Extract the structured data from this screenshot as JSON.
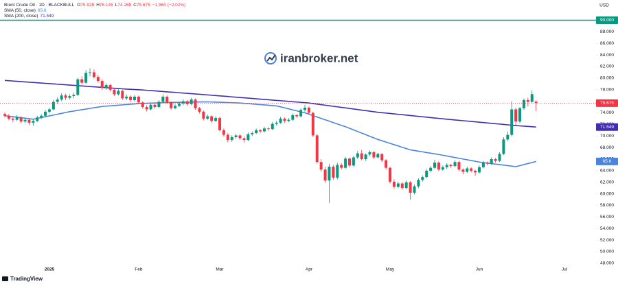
{
  "chart_data": {
    "type": "candlestick",
    "title": "Brent Crude Oil · 1D · BLACKBULL",
    "ohlc_labels": [
      "O",
      "H",
      "L",
      "C"
    ],
    "change": "−1.560 (−2.02%)",
    "currency": "USD",
    "watermark": "iranbroker.net",
    "brand": "TradingView",
    "up_color": "#089981",
    "down_color": "#f23645",
    "categories": [
      null,
      null,
      null,
      null,
      null,
      null,
      null,
      null,
      null,
      null,
      null,
      "2025",
      null,
      null,
      null,
      null,
      null,
      null,
      null,
      null,
      null,
      null,
      null,
      null,
      null,
      null,
      null,
      null,
      null,
      null,
      null,
      null,
      null,
      "Feb",
      null,
      null,
      null,
      null,
      null,
      null,
      null,
      null,
      null,
      null,
      null,
      null,
      null,
      null,
      null,
      null,
      null,
      null,
      null,
      "Mar",
      null,
      null,
      null,
      null,
      null,
      null,
      null,
      null,
      null,
      null,
      null,
      null,
      null,
      null,
      null,
      null,
      null,
      null,
      null,
      null,
      null,
      "Apr",
      null,
      null,
      null,
      null,
      null,
      null,
      null,
      null,
      null,
      null,
      null,
      null,
      null,
      null,
      null,
      null,
      null,
      null,
      null,
      "May",
      null,
      null,
      null,
      null,
      null,
      null,
      null,
      null,
      null,
      null,
      null,
      null,
      null,
      null,
      null,
      null,
      null,
      null,
      null,
      null,
      null,
      "Jun",
      null,
      null,
      null,
      null,
      null,
      null,
      null,
      null,
      null,
      null,
      null,
      null,
      null,
      null,
      null,
      null,
      null,
      null,
      null,
      null,
      "Jul"
    ],
    "open": [
      73.8,
      73.5,
      73.0,
      72.8,
      73.2,
      72.5,
      72.8,
      72.3,
      72.6,
      73.2,
      73.5,
      74.2,
      74.6,
      75.9,
      76.3,
      77.0,
      76.6,
      76.9,
      77.1,
      79.8,
      79.2,
      80.9,
      81.0,
      80.2,
      79.5,
      78.3,
      78.8,
      78.0,
      77.2,
      77.8,
      76.5,
      76.8,
      76.2,
      76.8,
      75.8,
      75.0,
      74.6,
      75.4,
      75.0,
      75.9,
      76.8,
      75.8,
      74.8,
      75.2,
      75.6,
      76.0,
      75.5,
      76.3,
      74.8,
      74.2,
      73.0,
      73.4,
      72.6,
      73.1,
      71.0,
      70.2,
      69.3,
      69.8,
      70.1,
      69.6,
      69.3,
      70.3,
      70.5,
      71.0,
      70.8,
      71.3,
      71.2,
      72.1,
      72.3,
      73.0,
      72.6,
      72.8,
      73.6,
      73.4,
      74.5,
      74.9,
      74.0,
      70.1,
      65.5,
      64.2,
      62.3,
      64.7,
      62.8,
      65.0,
      64.5,
      66.1,
      64.9,
      66.3,
      67.0,
      66.0,
      66.8,
      67.2,
      66.3,
      66.9,
      65.8,
      64.5,
      62.1,
      61.2,
      61.8,
      61.0,
      62.0,
      60.2,
      61.3,
      62.4,
      62.9,
      64.0,
      64.5,
      65.4,
      64.2,
      64.6,
      65.0,
      64.8,
      65.5,
      64.2,
      63.8,
      64.4,
      64.0,
      63.7,
      64.6,
      65.4,
      65.2,
      66.0,
      65.7,
      66.9,
      69.4,
      70.2,
      74.6,
      72.5,
      74.8,
      76.2,
      75.9,
      75.925,
      null,
      null,
      null,
      null,
      null,
      null,
      null
    ],
    "high": [
      74.1,
      73.8,
      73.3,
      73.6,
      73.4,
      73.1,
      73.0,
      72.9,
      73.5,
      73.8,
      74.5,
      74.9,
      76.2,
      76.7,
      77.4,
      77.3,
      77.2,
      77.5,
      80.1,
      80.3,
      81.4,
      81.7,
      81.5,
      80.6,
      79.8,
      79.1,
      79.0,
      78.3,
      78.1,
      78.0,
      77.2,
      77.0,
      77.1,
      77.0,
      76.0,
      75.3,
      75.7,
      75.6,
      76.2,
      77.2,
      77.0,
      76.0,
      75.5,
      75.9,
      76.4,
      76.2,
      76.6,
      76.5,
      75.0,
      74.4,
      73.7,
      73.6,
      73.4,
      73.3,
      71.3,
      70.5,
      70.1,
      70.4,
      70.3,
      69.9,
      70.6,
      70.8,
      71.3,
      71.2,
      71.6,
      71.5,
      72.4,
      72.6,
      73.3,
      73.2,
      73.1,
      73.9,
      73.8,
      74.8,
      75.4,
      75.1,
      74.2,
      70.4,
      66.0,
      64.7,
      65.2,
      65.0,
      65.4,
      65.3,
      66.4,
      66.3,
      66.6,
      67.4,
      67.6,
      67.0,
      67.5,
      67.4,
      67.1,
      67.0,
      66.0,
      64.7,
      62.5,
      62.1,
      62.0,
      62.3,
      62.2,
      61.6,
      62.7,
      63.2,
      64.3,
      64.8,
      65.9,
      65.6,
      64.9,
      65.3,
      65.2,
      65.8,
      65.7,
      64.4,
      64.7,
      64.6,
      64.2,
      64.9,
      65.7,
      65.6,
      66.3,
      66.2,
      67.2,
      69.8,
      70.8,
      76.0,
      74.9,
      75.0,
      76.5,
      76.6,
      77.9,
      76.145,
      null,
      null,
      null,
      null,
      null,
      null,
      null
    ],
    "low": [
      73.2,
      72.7,
      72.4,
      72.6,
      72.2,
      72.3,
      71.9,
      71.8,
      72.4,
      72.9,
      73.3,
      73.9,
      74.4,
      75.5,
      76.0,
      76.2,
      76.3,
      76.5,
      76.9,
      78.9,
      79.0,
      80.3,
      79.9,
      79.2,
      78.0,
      78.0,
      77.7,
      76.9,
      77.0,
      76.2,
      76.2,
      75.8,
      75.9,
      75.5,
      74.7,
      74.2,
      74.4,
      74.7,
      74.8,
      75.7,
      75.5,
      74.5,
      74.6,
      75.0,
      75.3,
      75.2,
      75.3,
      74.5,
      73.9,
      72.7,
      72.8,
      72.3,
      72.4,
      70.8,
      69.9,
      68.9,
      69.0,
      69.5,
      69.3,
      68.8,
      69.1,
      70.0,
      70.3,
      70.5,
      70.6,
      70.9,
      71.0,
      71.8,
      72.1,
      72.3,
      72.4,
      72.6,
      73.1,
      73.2,
      74.2,
      73.7,
      69.8,
      65.2,
      63.8,
      61.9,
      58.4,
      62.4,
      62.5,
      64.2,
      64.3,
      64.6,
      64.7,
      66.0,
      65.8,
      65.7,
      66.5,
      66.0,
      66.1,
      65.5,
      64.2,
      61.8,
      60.9,
      61.0,
      60.7,
      60.8,
      59.0,
      59.9,
      61.0,
      62.1,
      62.7,
      63.7,
      64.3,
      63.9,
      64.0,
      64.3,
      64.5,
      64.6,
      63.9,
      63.4,
      63.6,
      63.7,
      63.1,
      63.5,
      64.4,
      64.9,
      65.0,
      65.4,
      65.5,
      66.7,
      69.1,
      69.9,
      71.9,
      72.2,
      74.5,
      75.1,
      75.7,
      74.265,
      null,
      null,
      null,
      null,
      null,
      null,
      null
    ],
    "close": [
      73.5,
      73.0,
      72.8,
      73.2,
      72.5,
      72.8,
      72.3,
      72.6,
      73.2,
      73.5,
      74.2,
      74.6,
      75.9,
      76.3,
      77.0,
      76.6,
      76.9,
      77.1,
      79.8,
      79.2,
      80.9,
      81.0,
      80.2,
      79.5,
      78.3,
      78.8,
      78.0,
      77.2,
      77.8,
      76.5,
      76.8,
      76.2,
      76.8,
      75.8,
      75.0,
      74.6,
      75.4,
      75.0,
      75.9,
      76.8,
      75.8,
      74.8,
      75.2,
      75.6,
      76.0,
      75.5,
      76.3,
      74.8,
      74.2,
      73.0,
      73.4,
      72.6,
      73.1,
      71.0,
      70.2,
      69.3,
      69.8,
      70.1,
      69.6,
      69.3,
      70.3,
      70.5,
      71.0,
      70.8,
      71.3,
      71.2,
      72.1,
      72.3,
      73.0,
      72.6,
      72.8,
      73.6,
      73.4,
      74.5,
      74.9,
      74.0,
      70.1,
      65.5,
      64.2,
      62.3,
      64.7,
      62.8,
      65.0,
      64.5,
      66.1,
      64.9,
      66.3,
      67.0,
      66.0,
      66.8,
      67.2,
      66.3,
      66.9,
      65.8,
      64.5,
      62.1,
      61.2,
      61.8,
      61.0,
      62.0,
      60.2,
      61.3,
      62.4,
      62.9,
      64.0,
      64.5,
      65.4,
      64.2,
      64.6,
      65.0,
      64.8,
      65.5,
      64.2,
      63.8,
      64.4,
      64.0,
      63.7,
      64.6,
      65.4,
      65.2,
      66.0,
      65.7,
      66.9,
      69.4,
      70.2,
      74.6,
      72.5,
      74.8,
      76.2,
      75.9,
      77.235,
      75.675,
      null,
      null,
      null,
      null,
      null,
      null,
      null
    ],
    "series": [
      {
        "name": "SMA (50, close)",
        "type": "line",
        "color": "#4a84dc",
        "values": [
          73.5,
          73.42,
          73.33,
          73.25,
          73.16,
          73.08,
          72.99,
          72.9,
          73.04,
          73.19,
          73.33,
          73.48,
          73.62,
          73.77,
          73.91,
          74.06,
          74.2,
          74.31,
          74.43,
          74.54,
          74.65,
          74.76,
          74.88,
          74.99,
          75.1,
          75.16,
          75.21,
          75.27,
          75.32,
          75.38,
          75.43,
          75.49,
          75.54,
          75.6,
          75.63,
          75.65,
          75.68,
          75.7,
          75.73,
          75.75,
          75.78,
          75.8,
          75.81,
          75.82,
          75.83,
          75.84,
          75.86,
          75.87,
          75.88,
          75.89,
          75.9,
          75.88,
          75.85,
          75.83,
          75.8,
          75.78,
          75.75,
          75.73,
          75.7,
          75.64,
          75.59,
          75.53,
          75.48,
          75.42,
          75.37,
          75.31,
          75.26,
          75.2,
          75.03,
          74.86,
          74.69,
          74.51,
          74.34,
          74.17,
          74.0,
          73.76,
          73.52,
          73.28,
          73.04,
          72.8,
          72.56,
          72.32,
          72.08,
          71.84,
          71.6,
          71.33,
          71.05,
          70.78,
          70.5,
          70.23,
          69.95,
          69.68,
          69.4,
          69.18,
          68.95,
          68.73,
          68.5,
          68.28,
          68.05,
          67.83,
          67.6,
          67.49,
          67.37,
          67.26,
          67.14,
          67.03,
          66.91,
          66.8,
          66.67,
          66.54,
          66.41,
          66.28,
          66.15,
          66.02,
          65.89,
          65.76,
          65.63,
          65.5,
          65.41,
          65.32,
          65.23,
          65.14,
          65.06,
          64.97,
          64.88,
          64.79,
          64.7,
          64.88,
          65.06,
          65.24,
          65.42,
          65.6,
          null,
          null,
          null,
          null,
          null,
          null,
          null
        ]
      },
      {
        "name": "SMA (200, close)",
        "type": "line",
        "color": "#3f2fb0",
        "values": [
          79.6,
          79.55,
          79.5,
          79.45,
          79.4,
          79.35,
          79.3,
          79.25,
          79.2,
          79.15,
          79.1,
          79.05,
          79.0,
          78.95,
          78.9,
          78.85,
          78.8,
          78.75,
          78.7,
          78.65,
          78.6,
          78.55,
          78.5,
          78.45,
          78.4,
          78.35,
          78.3,
          78.25,
          78.2,
          78.15,
          78.1,
          78.07,
          78.03,
          78.0,
          77.95,
          77.9,
          77.85,
          77.8,
          77.74,
          77.69,
          77.63,
          77.58,
          77.53,
          77.47,
          77.42,
          77.37,
          77.31,
          77.26,
          77.21,
          77.15,
          77.1,
          77.04,
          76.99,
          76.93,
          76.88,
          76.82,
          76.76,
          76.71,
          76.65,
          76.6,
          76.54,
          76.48,
          76.43,
          76.37,
          76.32,
          76.26,
          76.2,
          76.15,
          76.09,
          76.04,
          75.98,
          75.92,
          75.87,
          75.81,
          75.76,
          75.7,
          75.6,
          75.51,
          75.42,
          75.32,
          75.23,
          75.13,
          75.04,
          74.94,
          74.85,
          74.76,
          74.66,
          74.57,
          74.47,
          74.38,
          74.29,
          74.19,
          74.1,
          74.03,
          73.96,
          73.89,
          73.82,
          73.75,
          73.68,
          73.61,
          73.54,
          73.46,
          73.39,
          73.32,
          73.25,
          73.18,
          73.11,
          73.04,
          72.97,
          72.9,
          72.84,
          72.77,
          72.71,
          72.64,
          72.58,
          72.51,
          72.45,
          72.38,
          72.32,
          72.25,
          72.19,
          72.12,
          72.06,
          71.99,
          71.93,
          71.86,
          71.8,
          71.75,
          71.7,
          71.65,
          71.6,
          71.549,
          null,
          null,
          null,
          null,
          null,
          null,
          null
        ]
      }
    ],
    "hline": {
      "value": 90,
      "label": "90.000",
      "color": "#089981"
    },
    "ylim": [
      47.75,
      93.5
    ],
    "yticks": [
      {
        "value": 48,
        "label": "48.000"
      },
      {
        "value": 50,
        "label": "50.000"
      },
      {
        "value": 52,
        "label": "52.000"
      },
      {
        "value": 54,
        "label": "54.000"
      },
      {
        "value": 56,
        "label": "56.000"
      },
      {
        "value": 58,
        "label": "58.000"
      },
      {
        "value": 60,
        "label": "60.000"
      },
      {
        "value": 62,
        "label": "62.000"
      },
      {
        "value": 64,
        "label": "64.000"
      },
      {
        "value": 66,
        "label": "66.000"
      },
      {
        "value": 68,
        "label": "68.000"
      },
      {
        "value": 70,
        "label": "70.000"
      },
      {
        "value": 72,
        "label": "72.000"
      },
      {
        "value": 74,
        "label": "74.000"
      },
      {
        "value": 76,
        "label": "76.000"
      },
      {
        "value": 78,
        "label": "78.000"
      },
      {
        "value": 80,
        "label": "80.000"
      },
      {
        "value": 82,
        "label": "82.000"
      },
      {
        "value": 84,
        "label": "84.000"
      },
      {
        "value": 86,
        "label": "86.000"
      },
      {
        "value": 88,
        "label": "88.000"
      }
    ],
    "grid": false
  }
}
